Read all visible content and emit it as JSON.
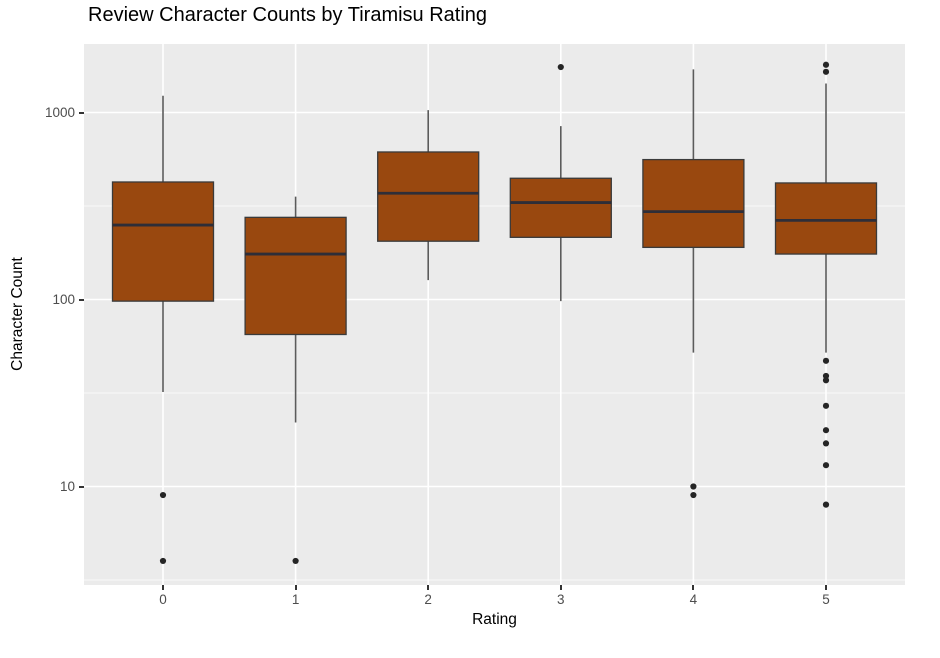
{
  "chart_data": {
    "type": "boxplot",
    "title": "Review Character Counts by Tiramisu Rating",
    "xlabel": "Rating",
    "ylabel": "Character Count",
    "x_categories": [
      "0",
      "1",
      "2",
      "3",
      "4",
      "5"
    ],
    "y_scale": "log10",
    "y_ticks": [
      10,
      100,
      1000
    ],
    "y_tick_labels": [
      "10",
      "100",
      "1000"
    ],
    "y_minor_gridlines": [
      3.162,
      31.623,
      316.228
    ],
    "ylim": [
      3,
      2300
    ],
    "grid": "major-and-minor-white-on-gray",
    "legend": "none",
    "series": [
      {
        "category": "0",
        "whisker_low": 32,
        "q1": 98,
        "median": 250,
        "q3": 425,
        "whisker_high": 1230,
        "outliers": [
          9,
          4
        ]
      },
      {
        "category": "1",
        "whisker_low": 22,
        "q1": 65,
        "median": 175,
        "q3": 275,
        "whisker_high": 355,
        "outliers": [
          4
        ]
      },
      {
        "category": "2",
        "whisker_low": 127,
        "q1": 205,
        "median": 370,
        "q3": 615,
        "whisker_high": 1030,
        "outliers": []
      },
      {
        "category": "3",
        "whisker_low": 98,
        "q1": 215,
        "median": 330,
        "q3": 445,
        "whisker_high": 845,
        "outliers": [
          1750
        ]
      },
      {
        "category": "4",
        "whisker_low": 52,
        "q1": 190,
        "median": 295,
        "q3": 560,
        "whisker_high": 1700,
        "outliers": [
          10,
          9
        ]
      },
      {
        "category": "5",
        "whisker_low": 52,
        "q1": 175,
        "median": 265,
        "q3": 420,
        "whisker_high": 1430,
        "outliers": [
          1800,
          1650,
          47,
          39,
          37,
          27,
          20,
          17,
          13,
          8
        ]
      }
    ],
    "colors": {
      "box_fill": "#99480F",
      "box_border": "#3A3A3A",
      "median_line": "#2E2E38",
      "whisker": "#5B5B5B",
      "outlier": "#252525",
      "panel_bg": "#EBEBEB",
      "gridline": "#FFFFFF",
      "tick_mark": "#333333",
      "tick_label": "#4D4D4D",
      "axis_title": "#000000",
      "title": "#000000"
    }
  }
}
